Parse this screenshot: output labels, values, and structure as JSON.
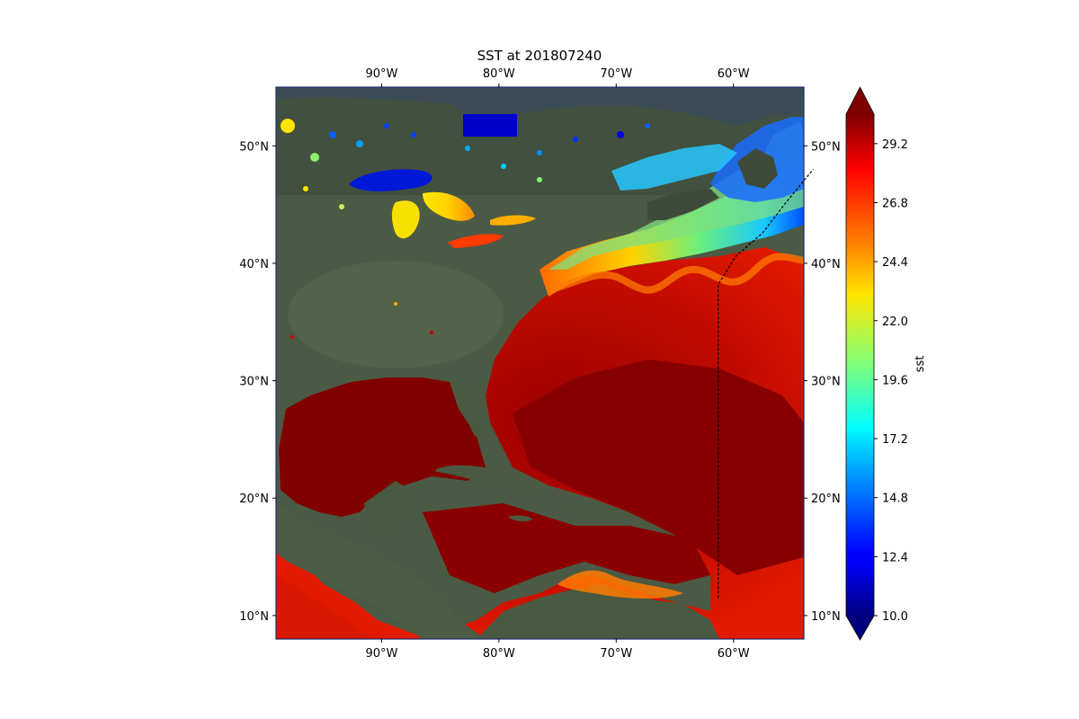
{
  "figure": {
    "title": "SST at 201807240"
  },
  "map": {
    "region": "Northwest Atlantic, Gulf of Mexico and Caribbean",
    "lon_range": [
      -99,
      -54
    ],
    "lat_range": [
      8,
      55
    ],
    "background": "satellite imagery",
    "lon_ticks": [
      {
        "lon": -90,
        "label": "90°W"
      },
      {
        "lon": -80,
        "label": "80°W"
      },
      {
        "lon": -70,
        "label": "70°W"
      },
      {
        "lon": -60,
        "label": "60°W"
      }
    ],
    "lat_ticks": [
      {
        "lat": 50,
        "label": "50°N"
      },
      {
        "lat": 40,
        "label": "40°N"
      },
      {
        "lat": 30,
        "label": "30°N"
      },
      {
        "lat": 20,
        "label": "20°N"
      },
      {
        "lat": 10,
        "label": "10°N"
      }
    ],
    "track": {
      "style": "dashed",
      "color": "#000000",
      "points": [
        [
          -61.3,
          11.5
        ],
        [
          -61.3,
          38.2
        ],
        [
          -59.8,
          40.6
        ],
        [
          -57.5,
          42.6
        ],
        [
          -55.5,
          45.2
        ],
        [
          -53.2,
          48.0
        ]
      ]
    }
  },
  "colorbar": {
    "label": "sst",
    "min": 10.0,
    "max": 30.4,
    "extend": "both",
    "colormap": "jet",
    "ticks": [
      "10.0",
      "12.4",
      "14.8",
      "17.2",
      "19.6",
      "22.0",
      "24.4",
      "26.8",
      "29.2"
    ]
  }
}
